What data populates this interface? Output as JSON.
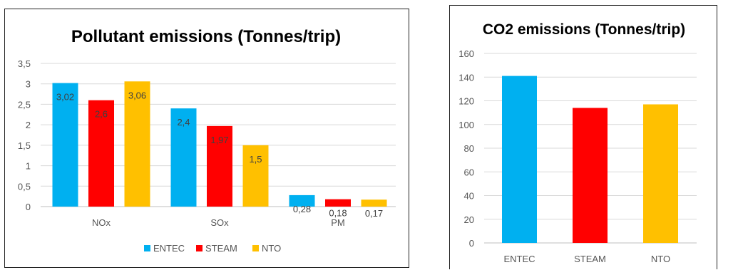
{
  "chart_data": [
    {
      "type": "bar",
      "title": "Pollutant emissions (Tonnes/trip)",
      "categories": [
        "NOx",
        "SOx",
        "PM"
      ],
      "series": [
        {
          "name": "ENTEC",
          "color": "#00b0f0",
          "values": [
            3.02,
            2.4,
            0.28
          ],
          "labels": [
            "3,02",
            "2,4",
            "0,28"
          ]
        },
        {
          "name": "STEAM",
          "color": "#ff0000",
          "values": [
            2.6,
            1.97,
            0.18
          ],
          "labels": [
            "2,6",
            "1,97",
            "0,18"
          ]
        },
        {
          "name": "NTO",
          "color": "#ffc000",
          "values": [
            3.06,
            1.5,
            0.17
          ],
          "labels": [
            "3,06",
            "1,5",
            "0,17"
          ]
        }
      ],
      "ylim": [
        0,
        3.5
      ],
      "yticks": [
        "0",
        "0,5",
        "1",
        "1,5",
        "2",
        "2,5",
        "3",
        "3,5"
      ],
      "grid": true,
      "legend": "bottom"
    },
    {
      "type": "bar",
      "title": "CO2 emissions (Tonnes/trip)",
      "categories": [
        "ENTEC",
        "STEAM",
        "NTO"
      ],
      "values": [
        141,
        114,
        117
      ],
      "colors": [
        "#00b0f0",
        "#ff0000",
        "#ffc000"
      ],
      "ylim": [
        0,
        160
      ],
      "yticks": [
        "0",
        "20",
        "40",
        "60",
        "80",
        "100",
        "120",
        "140",
        "160"
      ],
      "grid": true,
      "legend": "none"
    }
  ]
}
